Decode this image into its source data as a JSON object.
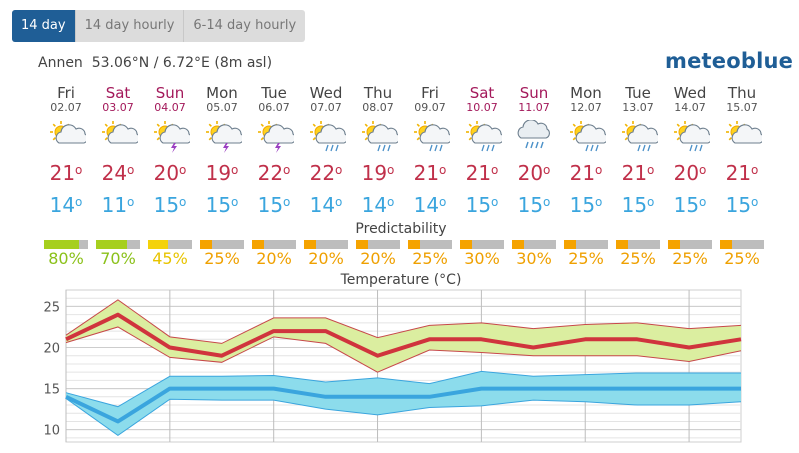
{
  "tabs": [
    {
      "label": "14 day",
      "active": true
    },
    {
      "label": "14 day hourly",
      "active": false
    },
    {
      "label": "6-14 day hourly",
      "active": false
    }
  ],
  "location": {
    "name": "Annen",
    "lat": "53.06",
    "lon": "6.72",
    "alt": "(8m asl)",
    "coords_text": "53.06°N / 6.72°E (8m asl)"
  },
  "brand": "meteoblue",
  "days": [
    {
      "name": "Fri",
      "date": "02.07",
      "weekend": false,
      "icon": "partly-cloudy-sun-icon",
      "tmax": "21",
      "tmin": "14",
      "pred": 80
    },
    {
      "name": "Sat",
      "date": "03.07",
      "weekend": true,
      "icon": "partly-cloudy-sun-icon",
      "tmax": "24",
      "tmin": "11",
      "pred": 70
    },
    {
      "name": "Sun",
      "date": "04.07",
      "weekend": true,
      "icon": "thunderstorm-sun-icon",
      "tmax": "20",
      "tmin": "15",
      "pred": 45
    },
    {
      "name": "Mon",
      "date": "05.07",
      "weekend": false,
      "icon": "thunderstorm-sun-icon",
      "tmax": "19",
      "tmin": "15",
      "pred": 25
    },
    {
      "name": "Tue",
      "date": "06.07",
      "weekend": false,
      "icon": "thunderstorm-sun-icon",
      "tmax": "22",
      "tmin": "15",
      "pred": 20
    },
    {
      "name": "Wed",
      "date": "07.07",
      "weekend": false,
      "icon": "rain-sun-icon",
      "tmax": "22",
      "tmin": "14",
      "pred": 20
    },
    {
      "name": "Thu",
      "date": "08.07",
      "weekend": false,
      "icon": "rain-sun-icon",
      "tmax": "19",
      "tmin": "14",
      "pred": 20
    },
    {
      "name": "Fri",
      "date": "09.07",
      "weekend": false,
      "icon": "rain-sun-icon",
      "tmax": "21",
      "tmin": "14",
      "pred": 25
    },
    {
      "name": "Sat",
      "date": "10.07",
      "weekend": true,
      "icon": "rain-sun-icon",
      "tmax": "21",
      "tmin": "15",
      "pred": 30
    },
    {
      "name": "Sun",
      "date": "11.07",
      "weekend": true,
      "icon": "rain-cloud-icon",
      "tmax": "20",
      "tmin": "15",
      "pred": 30
    },
    {
      "name": "Mon",
      "date": "12.07",
      "weekend": false,
      "icon": "rain-sun-icon",
      "tmax": "21",
      "tmin": "15",
      "pred": 25
    },
    {
      "name": "Tue",
      "date": "13.07",
      "weekend": false,
      "icon": "rain-sun-icon",
      "tmax": "21",
      "tmin": "15",
      "pred": 25
    },
    {
      "name": "Wed",
      "date": "14.07",
      "weekend": false,
      "icon": "rain-sun-icon",
      "tmax": "20",
      "tmin": "15",
      "pred": 25
    },
    {
      "name": "Thu",
      "date": "15.07",
      "weekend": false,
      "icon": "partly-cloudy-sun-icon",
      "tmax": "21",
      "tmin": "15",
      "pred": 25
    }
  ],
  "predictability": {
    "title": "Predictability"
  },
  "colors": {
    "pred_high": "#a6cf1e",
    "pred_mid": "#f4d20a",
    "pred_low": "#f5a300",
    "pred_text_high": "#8bc11a",
    "pred_text_mid": "#e8c400",
    "pred_text_low": "#efa000",
    "tmax": "#d0343d",
    "tmin": "#3aa5de",
    "max_band": "#dbeea0",
    "min_band": "#8cdcec",
    "weekend": "#a3185a",
    "brand": "#1f5e96"
  },
  "chart_data": {
    "type": "line",
    "title": "Temperature (°C)",
    "categories": [
      "02.07",
      "03.07",
      "04.07",
      "05.07",
      "06.07",
      "07.07",
      "08.07",
      "09.07",
      "10.07",
      "11.07",
      "12.07",
      "13.07",
      "14.07",
      "15.07"
    ],
    "ylim": [
      8.5,
      27
    ],
    "yticks": [
      10,
      15,
      20,
      25
    ],
    "grid": true,
    "series": [
      {
        "values": [
          21,
          24,
          20,
          19,
          22,
          22,
          19,
          21,
          21,
          20,
          21,
          21,
          20,
          21
        ],
        "upper": [
          21.5,
          25.8,
          21.3,
          20.5,
          23.6,
          23.6,
          21.2,
          22.7,
          23,
          22.3,
          22.8,
          23,
          22.3,
          22.7
        ],
        "lower": [
          20.6,
          22.5,
          18.8,
          18.2,
          21.3,
          20.5,
          17,
          19.7,
          19.4,
          19,
          19,
          19,
          18.3,
          19.6
        ]
      },
      {
        "values": [
          14,
          11,
          15,
          15,
          15,
          14,
          14,
          14,
          15,
          15,
          15,
          15,
          15,
          15
        ],
        "upper": [
          14.5,
          12.8,
          16.5,
          16.5,
          16.6,
          15.8,
          16.3,
          15.6,
          17.1,
          16.5,
          16.7,
          16.9,
          16.9,
          16.9
        ],
        "lower": [
          13.8,
          9.3,
          13.7,
          13.6,
          13.6,
          12.5,
          11.8,
          12.7,
          12.9,
          13.6,
          13.4,
          13,
          13,
          13.4
        ]
      }
    ]
  }
}
